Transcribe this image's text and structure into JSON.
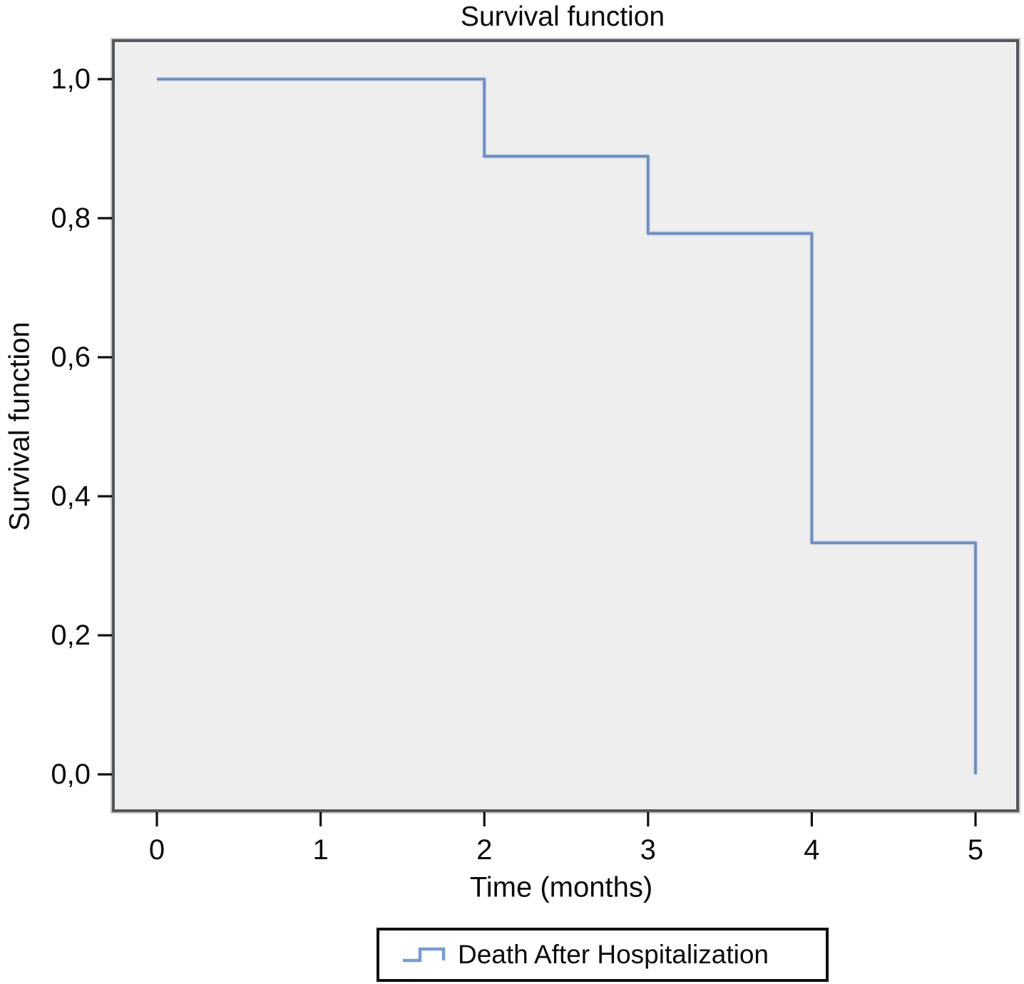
{
  "figure": {
    "title": "Survival function"
  },
  "chart_data": {
    "type": "line",
    "subtype": "kaplan-meier-step",
    "title": "Survival function",
    "xlabel": "Time (months)",
    "ylabel": "Survival function",
    "xlim": [
      0,
      5
    ],
    "ylim": [
      0.0,
      1.0
    ],
    "grid": false,
    "x_ticks": [
      "0",
      "1",
      "2",
      "3",
      "4",
      "5"
    ],
    "x_tick_values": [
      0,
      1,
      2,
      3,
      4,
      5
    ],
    "y_ticks": [
      "1,0",
      "0,8",
      "0,6",
      "0,4",
      "0,2",
      "0,0"
    ],
    "y_tick_values": [
      1.0,
      0.8,
      0.6,
      0.4,
      0.2,
      0.0
    ],
    "legend_position": "bottom",
    "series": [
      {
        "name": "Death After Hospitalization",
        "color": "#6d8cbd",
        "halo_color": "#b9c9e3",
        "step_points": [
          [
            0,
            1.0
          ],
          [
            2,
            1.0
          ],
          [
            2,
            0.889
          ],
          [
            3,
            0.889
          ],
          [
            3,
            0.778
          ],
          [
            4,
            0.778
          ],
          [
            4,
            0.333
          ],
          [
            5,
            0.333
          ],
          [
            5,
            0.0
          ]
        ]
      }
    ]
  },
  "legend": {
    "label": "Death After Hospitalization",
    "swatch": "step-line-icon",
    "line_color": "#7b9cce"
  },
  "colors": {
    "plot_background": "#eeeeee",
    "plot_border": "#54585c",
    "tick": "#101010",
    "text": "#0b0b0b",
    "legend_border": "#101010"
  }
}
